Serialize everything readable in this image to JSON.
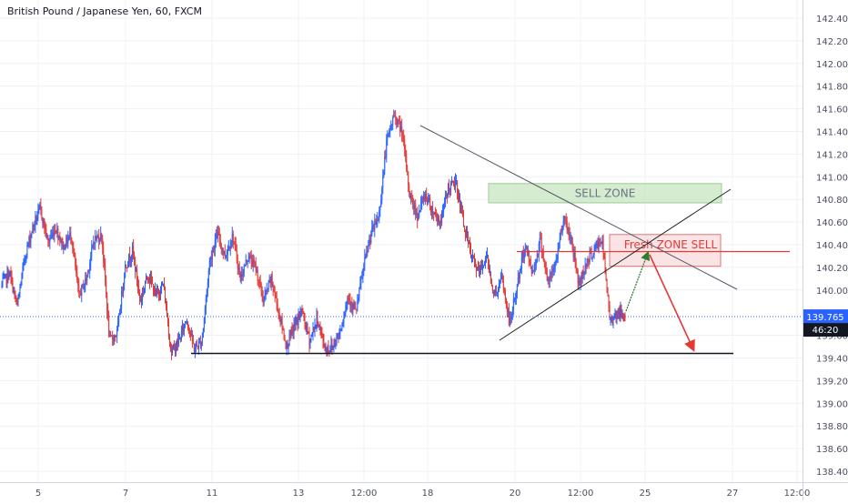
{
  "chart_title": "British Pound / Japanese Yen, 60, FXCM",
  "colors": {
    "up": "#2962ff",
    "down": "#e53935",
    "grid": "#eef1f5",
    "axis": "#d1d4dc",
    "price_line": "#2962ff",
    "sell_zone_fill": "#c8e6c0",
    "fresh_zone_fill": "#f8d7da",
    "fresh_zone_text": "#e53935",
    "sell_zone_text": "#6b7380",
    "arrow_red": "#e53935",
    "arrow_green": "#2e7d32",
    "support": "#131722",
    "trendline": "#555b66"
  },
  "chart_data": {
    "type": "candlestick",
    "symbol": "British Pound / Japanese Yen",
    "timeframe": "60",
    "source": "FXCM",
    "ylim": [
      138.35,
      142.5
    ],
    "y_ticks": [
      "142.400",
      "142.200",
      "142.000",
      "141.800",
      "141.600",
      "141.400",
      "141.200",
      "141.000",
      "140.800",
      "140.600",
      "140.400",
      "140.200",
      "140.000",
      "139.600",
      "139.400",
      "139.200",
      "139.000",
      "138.800",
      "138.600",
      "138.400"
    ],
    "x_ticks": [
      "5",
      "7",
      "11",
      "13",
      "12:00",
      "18",
      "20",
      "12:00",
      "25",
      "27",
      "12:00"
    ],
    "last_price": "139.765",
    "countdown": "46:20",
    "annotations": {
      "sell_zone": {
        "label": "SELL ZONE",
        "y_range": [
          140.77,
          140.94
        ]
      },
      "fresh_zone_sell": {
        "label": "Fresh ZONE SELL",
        "y_range": [
          140.21,
          140.49
        ]
      },
      "fresh_zone_line": 140.34,
      "support_level": 139.44,
      "target_level": 139.44
    },
    "path": [
      140.05,
      140.15,
      139.85,
      140.3,
      140.55,
      140.72,
      140.42,
      140.55,
      140.38,
      140.5,
      139.95,
      140.1,
      140.45,
      140.48,
      139.55,
      139.62,
      140.2,
      140.35,
      139.9,
      140.15,
      139.95,
      140.05,
      139.45,
      139.55,
      139.75,
      139.48,
      139.55,
      140.25,
      140.5,
      140.3,
      140.48,
      140.1,
      140.3,
      140.2,
      139.9,
      140.1,
      139.8,
      139.5,
      139.68,
      139.82,
      139.55,
      139.75,
      139.48,
      139.5,
      139.65,
      139.95,
      139.8,
      140.2,
      140.5,
      140.65,
      141.3,
      141.55,
      141.4,
      140.85,
      140.65,
      140.85,
      140.7,
      140.6,
      140.9,
      140.95,
      140.6,
      140.3,
      140.15,
      140.3,
      139.95,
      140.1,
      139.7,
      140.05,
      140.4,
      140.15,
      140.45,
      140.05,
      140.25,
      140.65,
      140.45,
      140.05,
      140.25,
      140.35,
      140.45,
      139.75,
      139.8,
      139.77
    ]
  }
}
